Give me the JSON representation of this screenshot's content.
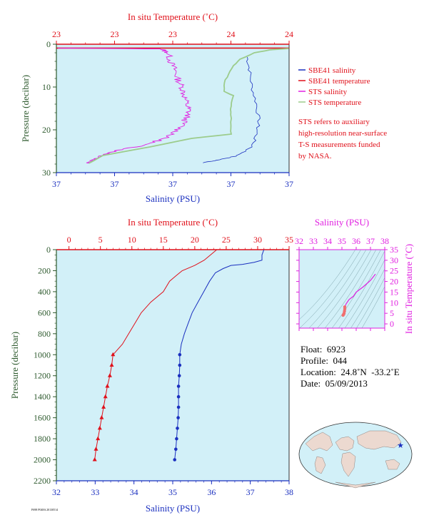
{
  "colors": {
    "red": "#e0101a",
    "blue": "#1a2fbf",
    "magenta": "#e020e0",
    "sts_temp": "#9ccc8c",
    "plot_bg": "#d2f0f8",
    "axis_green": "#2e5a2e",
    "axis_blue": "#1a2fbf",
    "land": "#ecd9d0",
    "ocean": "#d2f0f8"
  },
  "top_panel": {
    "legend": [
      "SBE41 salinity",
      "SBE41 temperature",
      "STS salinity",
      "STS temperature"
    ],
    "note_lines": [
      "STS refers to auxiliary",
      "high-resolution near-surface",
      "T-S measurements funded",
      "by NASA."
    ]
  },
  "info": {
    "float_label": "Float:",
    "float_value": "6923",
    "profile_label": "Profile:",
    "profile_value": "044",
    "location_label": "Location:",
    "location_value": "24.8˚N  -33.2˚E",
    "date_label": "Date:",
    "date_value": "05/09/2013"
  },
  "figure_id": "F698 P048A 20130514",
  "chart_data": [
    {
      "type": "line",
      "id": "top",
      "title_top": "In situ Temperature (˚C)",
      "xlabel": "Salinity (PSU)",
      "ylabel": "Pressure (decibar)",
      "top_tick_labels": [
        "23",
        "23",
        "23",
        "24",
        "24"
      ],
      "bottom_tick_labels": [
        "37",
        "37",
        "37",
        "37",
        "37"
      ],
      "y_tick_labels": [
        "0",
        "10",
        "20",
        "30"
      ],
      "ylim": [
        0,
        30
      ],
      "note": "axis tick labels rounded in original; curves drawn on relative scale",
      "series": [
        {
          "name": "SBE41 salinity",
          "points": [
            [
              0.82,
              3.0
            ],
            [
              0.83,
              6.0
            ],
            [
              0.84,
              10.0
            ],
            [
              0.86,
              14.0
            ],
            [
              0.87,
              18.0
            ],
            [
              0.86,
              21.0
            ],
            [
              0.84,
              24.0
            ],
            [
              0.78,
              26.0
            ],
            [
              0.7,
              27.0
            ],
            [
              0.63,
              27.7
            ]
          ]
        },
        {
          "name": "SBE41 temperature",
          "points": [
            [
              0.0,
              0.9
            ],
            [
              1.0,
              0.9
            ]
          ]
        },
        {
          "name": "STS salinity",
          "points": [
            [
              0.0,
              0.9
            ],
            [
              0.45,
              1.1
            ],
            [
              0.48,
              2.0
            ],
            [
              0.49,
              4.0
            ],
            [
              0.51,
              6.0
            ],
            [
              0.52,
              8.0
            ],
            [
              0.54,
              10.0
            ],
            [
              0.55,
              12.0
            ],
            [
              0.56,
              14.0
            ],
            [
              0.57,
              15.5
            ],
            [
              0.56,
              17.0
            ],
            [
              0.54,
              19.0
            ],
            [
              0.5,
              21.0
            ],
            [
              0.44,
              22.5
            ],
            [
              0.34,
              24.0
            ],
            [
              0.25,
              25.0
            ],
            [
              0.2,
              26.0
            ],
            [
              0.16,
              27.0
            ],
            [
              0.14,
              27.8
            ]
          ]
        },
        {
          "name": "STS temperature",
          "points": [
            [
              1.0,
              1.0
            ],
            [
              0.92,
              1.3
            ],
            [
              0.85,
              2.0
            ],
            [
              0.79,
              3.5
            ],
            [
              0.76,
              5.0
            ],
            [
              0.74,
              7.0
            ],
            [
              0.72,
              9.0
            ],
            [
              0.72,
              11.0
            ],
            [
              0.76,
              12.0
            ],
            [
              0.75,
              14.5
            ],
            [
              0.75,
              16.5
            ],
            [
              0.75,
              19.0
            ],
            [
              0.75,
              21.0
            ],
            [
              0.58,
              22.0
            ],
            [
              0.4,
              24.0
            ],
            [
              0.2,
              26.0
            ],
            [
              0.14,
              27.8
            ]
          ]
        }
      ]
    },
    {
      "type": "line",
      "id": "bottom",
      "title_top": "In situ Temperature (˚C)",
      "xlabel": "Salinity (PSU)",
      "ylabel": "Pressure (decibar)",
      "top_ticks": [
        0,
        5,
        10,
        15,
        20,
        25,
        30,
        35
      ],
      "bottom_ticks": [
        32,
        33,
        34,
        35,
        36,
        37,
        38
      ],
      "y_ticks": [
        0,
        200,
        400,
        600,
        800,
        1000,
        1200,
        1400,
        1600,
        1800,
        2000,
        2200
      ],
      "xlim_temp": [
        -2,
        35
      ],
      "xlim_sal": [
        32,
        38
      ],
      "ylim": [
        0,
        2200
      ],
      "series": [
        {
          "name": "temperature",
          "points": [
            [
              23.5,
              0
            ],
            [
              22.5,
              50
            ],
            [
              21.5,
              100
            ],
            [
              20,
              150
            ],
            [
              18,
              200
            ],
            [
              17,
              250
            ],
            [
              16,
              300
            ],
            [
              15,
              400
            ],
            [
              13,
              500
            ],
            [
              11.5,
              600
            ],
            [
              10.5,
              700
            ],
            [
              9.5,
              800
            ],
            [
              8.5,
              900
            ],
            [
              7,
              1000
            ],
            [
              6.8,
              1100
            ],
            [
              6.5,
              1200
            ],
            [
              6.1,
              1300
            ],
            [
              5.8,
              1400
            ],
            [
              5.5,
              1500
            ],
            [
              5.2,
              1600
            ],
            [
              4.9,
              1700
            ],
            [
              4.6,
              1800
            ],
            [
              4.3,
              1900
            ],
            [
              4.1,
              2000
            ]
          ]
        },
        {
          "name": "salinity",
          "points": [
            [
              37.35,
              0
            ],
            [
              37.3,
              50
            ],
            [
              37.3,
              100
            ],
            [
              37.1,
              120
            ],
            [
              36.8,
              140
            ],
            [
              36.5,
              150
            ],
            [
              36.3,
              180
            ],
            [
              36.1,
              220
            ],
            [
              35.95,
              300
            ],
            [
              35.8,
              400
            ],
            [
              35.65,
              500
            ],
            [
              35.5,
              600
            ],
            [
              35.4,
              700
            ],
            [
              35.3,
              800
            ],
            [
              35.22,
              900
            ],
            [
              35.18,
              1000
            ],
            [
              35.18,
              1100
            ],
            [
              35.17,
              1200
            ],
            [
              35.15,
              1300
            ],
            [
              35.15,
              1400
            ],
            [
              35.15,
              1500
            ],
            [
              35.14,
              1600
            ],
            [
              35.12,
              1700
            ],
            [
              35.1,
              1800
            ],
            [
              35.08,
              1900
            ],
            [
              35.05,
              2000
            ]
          ]
        }
      ]
    },
    {
      "type": "scatter",
      "id": "ts",
      "title_top": "Salinity (PSU)",
      "ylabel": "In situ Temperature (˚C)",
      "x_ticks": [
        32,
        33,
        34,
        35,
        36,
        37,
        38
      ],
      "y_ticks": [
        0,
        5,
        10,
        15,
        20,
        25,
        30,
        35
      ],
      "xlim": [
        32,
        38
      ],
      "ylim": [
        -2,
        35
      ],
      "series": [
        {
          "name": "T-S",
          "points": [
            [
              37.35,
              23.5
            ],
            [
              37.0,
              20.5
            ],
            [
              36.5,
              17.5
            ],
            [
              36.0,
              15.0
            ],
            [
              35.8,
              13.0
            ],
            [
              35.5,
              11.5
            ],
            [
              35.3,
              9.5
            ],
            [
              35.2,
              8.0
            ],
            [
              35.2,
              7.0
            ],
            [
              35.18,
              6.0
            ],
            [
              35.15,
              5.0
            ],
            [
              35.12,
              4.5
            ],
            [
              35.08,
              4.1
            ]
          ]
        }
      ]
    }
  ]
}
